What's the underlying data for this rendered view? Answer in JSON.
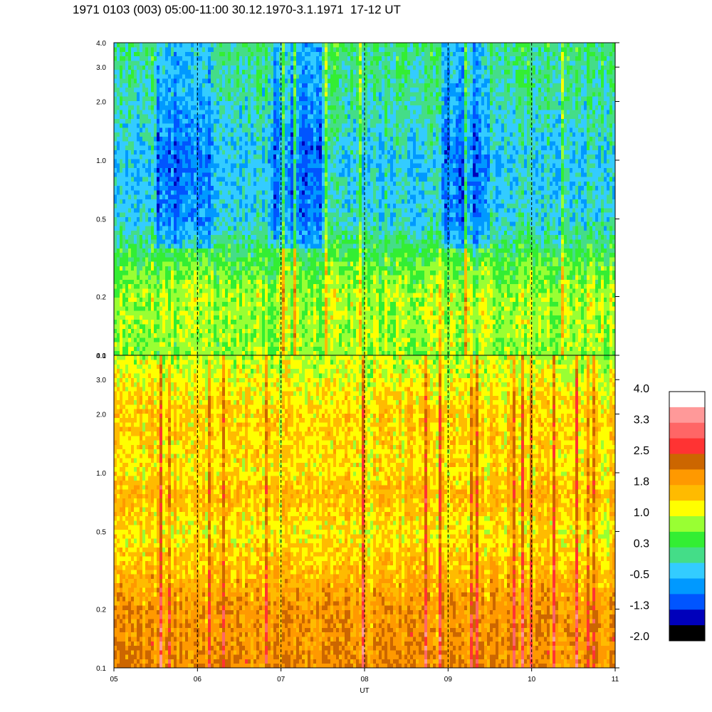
{
  "title": "1971 0103 (003) 05:00-11:00 30.12.1970-3.1.1971  17-12 UT",
  "chart_data": {
    "type": "heatmap",
    "title": "1971 0103 (003) 05:00-11:00 30.12.1970-3.1.1971  17-12 UT",
    "xlabel": "UT",
    "x_ticks": [
      "05",
      "06",
      "07",
      "08",
      "09",
      "10",
      "11"
    ],
    "xlim": [
      5,
      11
    ],
    "y_scale": "log",
    "ylim": [
      0.1,
      4.0
    ],
    "y_ticks": [
      0.1,
      0.2,
      0.5,
      1.0,
      2.0,
      3.0,
      4.0
    ],
    "y_tick_labels": [
      "0.1",
      "0.2",
      "0.5",
      "1.0",
      "2.0",
      "3.0",
      "4.0"
    ],
    "hour_gridlines": "dashed",
    "panels": [
      {
        "name": "upper",
        "profile": [
          {
            "y": 0.1,
            "value": 0.8
          },
          {
            "y": 0.2,
            "value": 0.9
          },
          {
            "y": 0.3,
            "value": 0.5
          },
          {
            "y": 0.5,
            "value": -0.2
          },
          {
            "y": 1.0,
            "value": -0.3
          },
          {
            "y": 2.0,
            "value": 0.0
          },
          {
            "y": 4.0,
            "value": 0.2
          }
        ],
        "quiet_intervals_ut": [
          [
            5.5,
            6.2
          ],
          [
            6.9,
            7.5
          ],
          [
            8.9,
            9.5
          ]
        ]
      },
      {
        "name": "lower",
        "profile": [
          {
            "y": 0.1,
            "value": 2.0
          },
          {
            "y": 0.2,
            "value": 1.9
          },
          {
            "y": 0.3,
            "value": 1.6
          },
          {
            "y": 0.5,
            "value": 1.2
          },
          {
            "y": 0.8,
            "value": 1.6
          },
          {
            "y": 1.0,
            "value": 1.3
          },
          {
            "y": 2.0,
            "value": 1.4
          },
          {
            "y": 4.0,
            "value": 0.9
          }
        ],
        "quiet_intervals_ut": []
      }
    ],
    "colorbar": {
      "labels": [
        "4.0",
        "3.3",
        "2.5",
        "1.8",
        "1.0",
        "0.3",
        "-0.5",
        "-1.3",
        "-2.0"
      ],
      "colors": [
        "#ffffff",
        "#ff9999",
        "#ff6666",
        "#ff3333",
        "#cc6600",
        "#ff9900",
        "#ffbb00",
        "#ffff00",
        "#99ff33",
        "#33ee33",
        "#44dd88",
        "#33ccff",
        "#0099ff",
        "#0055ff",
        "#0000bb",
        "#000000"
      ],
      "min": -2.0,
      "max": 4.0
    }
  }
}
